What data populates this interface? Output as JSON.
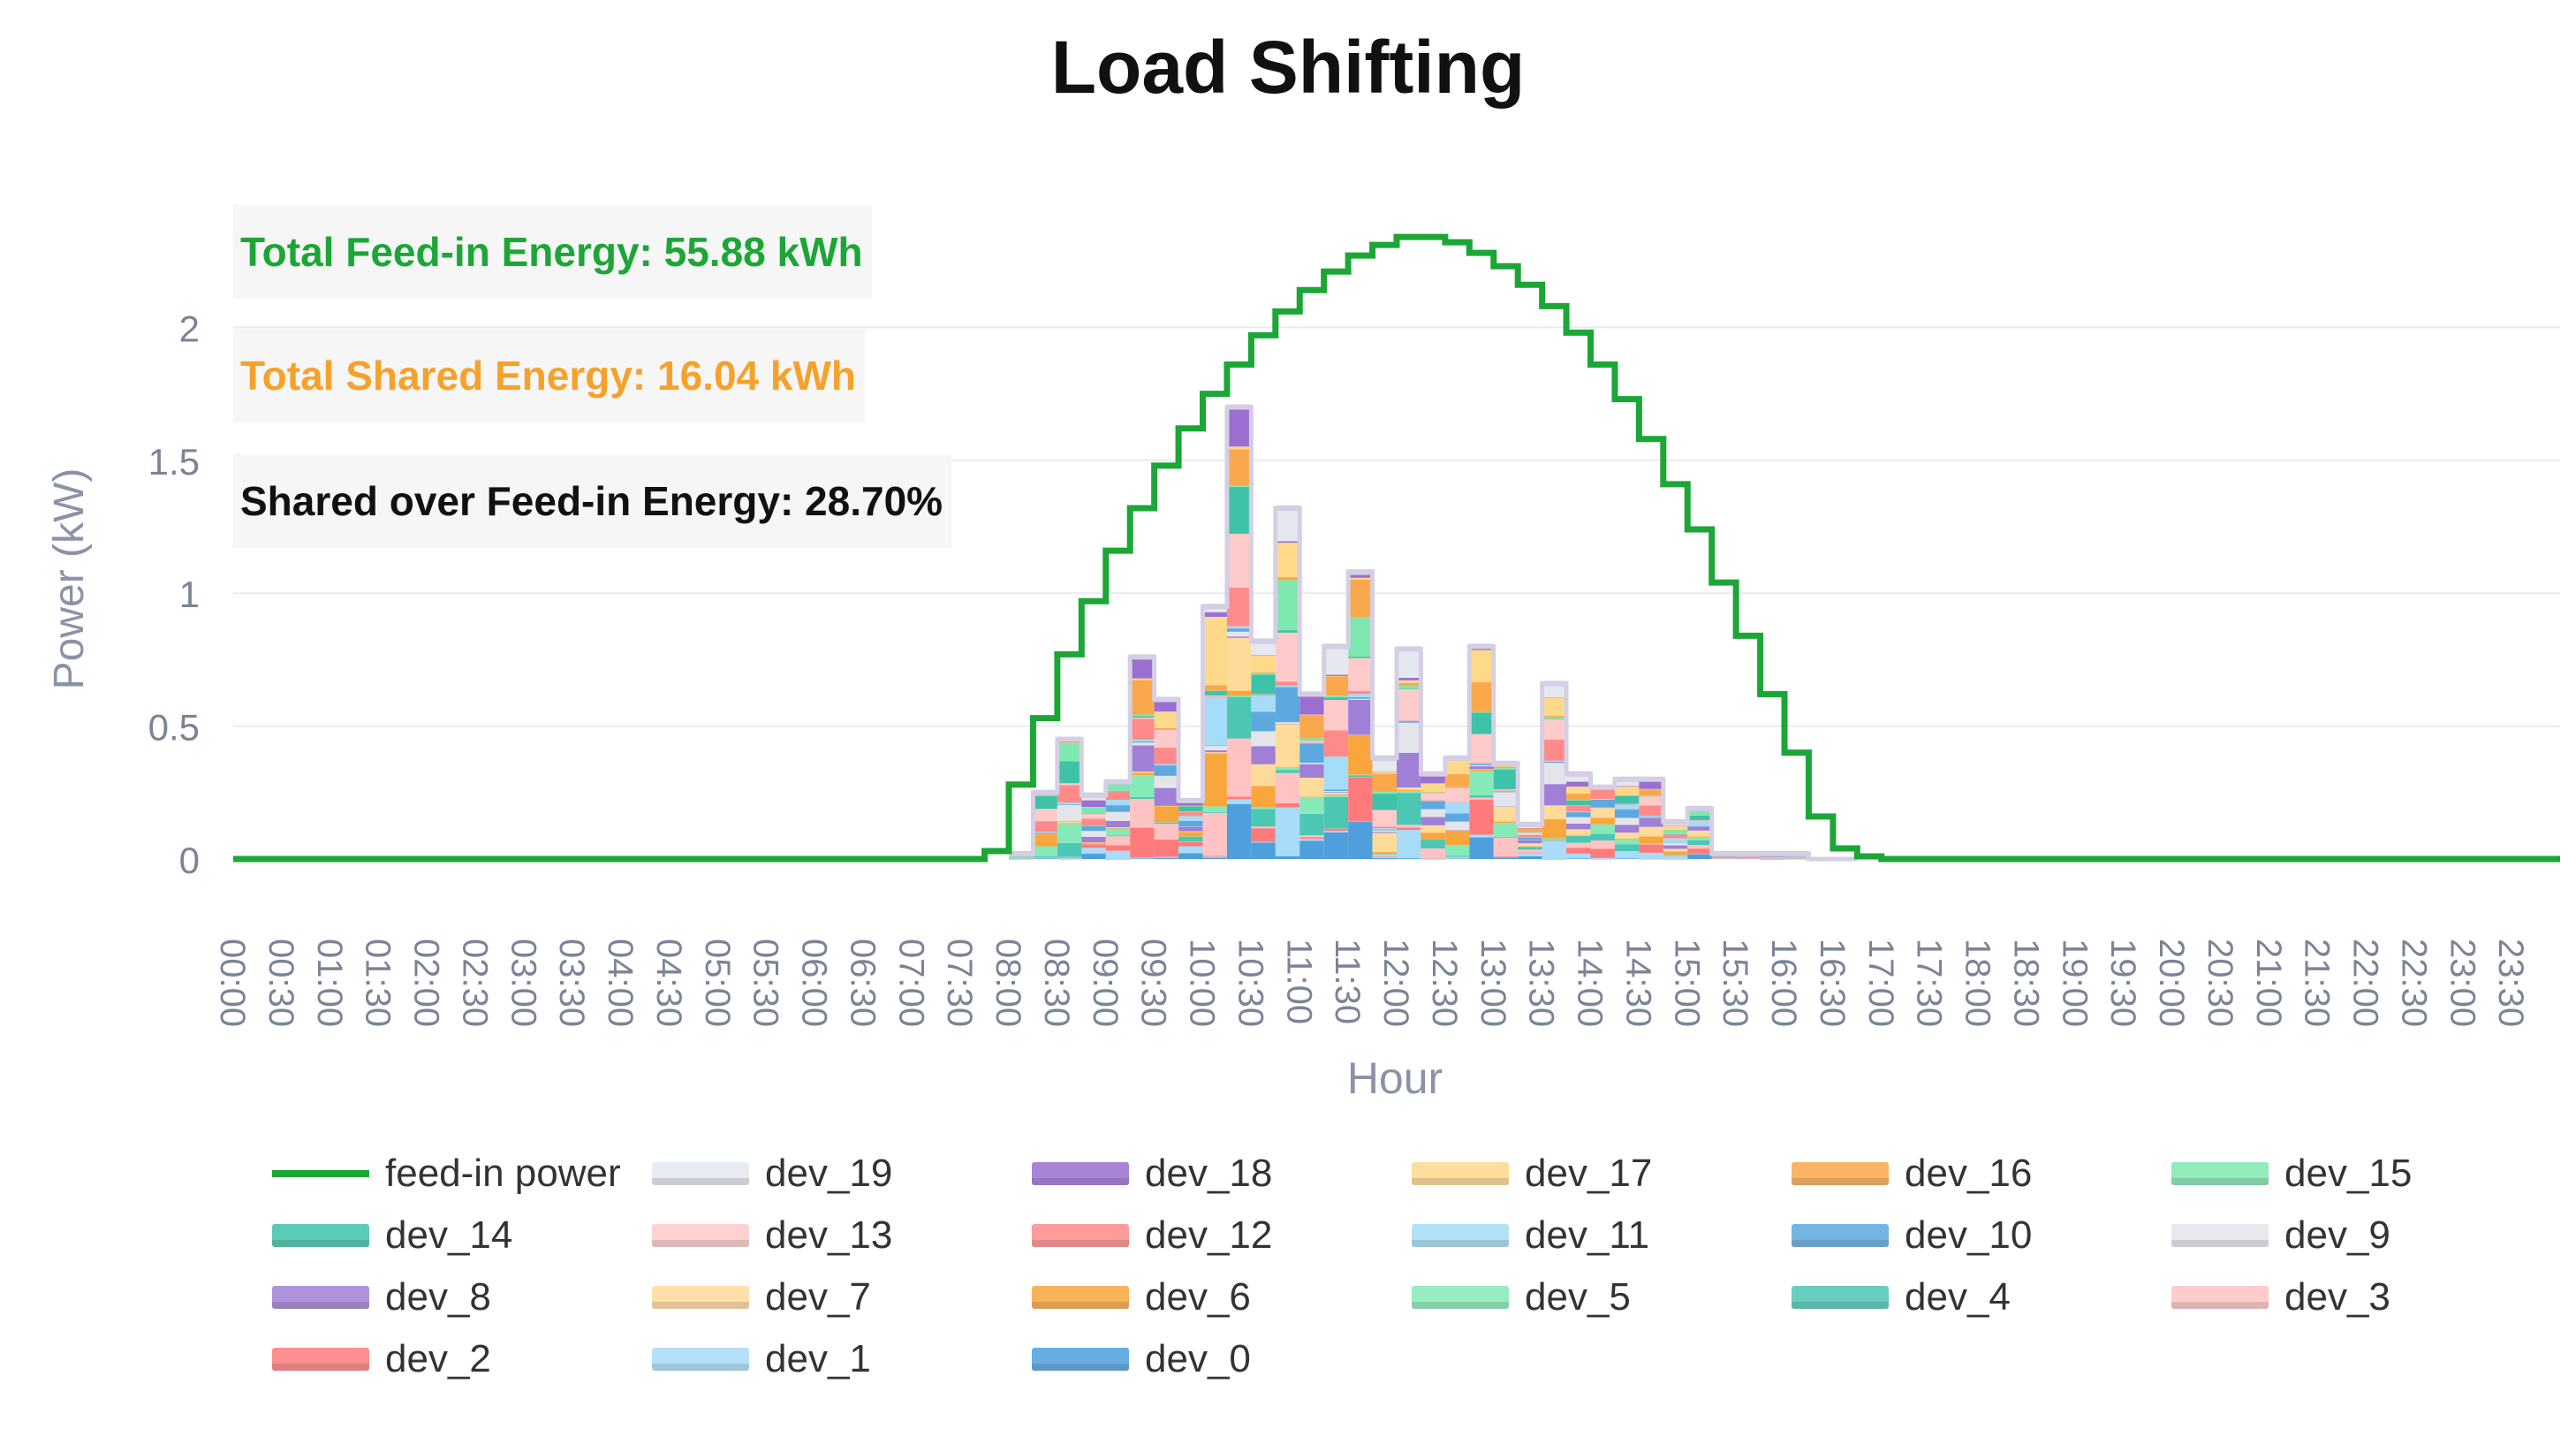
{
  "chart_data": {
    "type": "area",
    "title": "Load Shifting",
    "xlabel": "Hour",
    "ylabel": "Power (kW)",
    "ylim": [
      0,
      2.5
    ],
    "yticks": [
      "0",
      "0.5",
      "1",
      "1.5",
      "2"
    ],
    "grid": true,
    "step": true,
    "stacked": true,
    "legend_position": "bottom",
    "annotations": [
      {
        "text": "Total Feed-in Energy: 55.88 kWh",
        "color": "#1ca636"
      },
      {
        "text": "Total Shared Energy: 16.04  kWh",
        "color": "#f6a12b"
      },
      {
        "text": "Shared over Feed-in Energy: 28.70%",
        "color": "#111111"
      }
    ],
    "x": [
      "00:00",
      "00:30",
      "01:00",
      "01:30",
      "02:00",
      "02:30",
      "03:00",
      "03:30",
      "04:00",
      "04:30",
      "05:00",
      "05:30",
      "06:00",
      "06:30",
      "07:00",
      "07:30",
      "08:00",
      "08:30",
      "09:00",
      "09:30",
      "10:00",
      "10:30",
      "11:00",
      "11:30",
      "12:00",
      "12:30",
      "13:00",
      "13:30",
      "14:00",
      "14:30",
      "15:00",
      "15:30",
      "16:00",
      "16:30",
      "17:00",
      "17:30",
      "18:00",
      "18:30",
      "19:00",
      "19:30",
      "20:00",
      "20:30",
      "21:00",
      "21:30",
      "22:00",
      "22:30",
      "23:00",
      "23:30"
    ],
    "feed_in": {
      "name": "feed-in power",
      "color": "#1ca636",
      "x": [
        "07:30",
        "07:45",
        "08:00",
        "08:15",
        "08:30",
        "08:45",
        "09:00",
        "09:15",
        "09:30",
        "09:45",
        "10:00",
        "10:15",
        "10:30",
        "10:45",
        "11:00",
        "11:15",
        "11:30",
        "11:45",
        "12:00",
        "12:15",
        "12:30",
        "12:45",
        "13:00",
        "13:15",
        "13:30",
        "13:45",
        "14:00",
        "14:15",
        "14:30",
        "14:45",
        "15:00",
        "15:15",
        "15:30",
        "15:45",
        "16:00",
        "16:15",
        "16:30",
        "16:45",
        "17:00"
      ],
      "values": [
        0,
        0.03,
        0.28,
        0.53,
        0.77,
        0.97,
        1.16,
        1.32,
        1.48,
        1.62,
        1.75,
        1.86,
        1.97,
        2.06,
        2.14,
        2.21,
        2.27,
        2.31,
        2.34,
        2.34,
        2.32,
        2.28,
        2.23,
        2.16,
        2.08,
        1.98,
        1.86,
        1.73,
        1.58,
        1.41,
        1.24,
        1.04,
        0.84,
        0.62,
        0.4,
        0.16,
        0.04,
        0.01,
        0
      ]
    },
    "device_x": [
      "08:00",
      "08:15",
      "08:30",
      "08:45",
      "09:00",
      "09:15",
      "09:30",
      "09:45",
      "10:00",
      "10:15",
      "10:30",
      "10:45",
      "11:00",
      "11:15",
      "11:30",
      "11:45",
      "12:00",
      "12:15",
      "12:30",
      "12:45",
      "13:00",
      "13:15",
      "13:30",
      "13:45",
      "14:00",
      "14:15",
      "14:30",
      "14:45",
      "15:00",
      "15:15",
      "15:30",
      "15:45",
      "16:00",
      "16:15",
      "16:30"
    ],
    "device_totals": [
      0.02,
      0.25,
      0.45,
      0.24,
      0.29,
      0.76,
      0.6,
      0.22,
      0.95,
      1.7,
      0.82,
      1.32,
      0.62,
      0.8,
      1.08,
      0.38,
      0.79,
      0.32,
      0.38,
      0.8,
      0.36,
      0.13,
      0.66,
      0.32,
      0.27,
      0.3,
      0.3,
      0.14,
      0.19,
      0.02,
      0.02,
      0.02,
      0.02,
      0.0,
      0.0
    ],
    "series": [
      {
        "name": "dev_19",
        "color": "#e6e8f0"
      },
      {
        "name": "dev_18",
        "color": "#9a6fd1"
      },
      {
        "name": "dev_17",
        "color": "#ffd98a"
      },
      {
        "name": "dev_16",
        "color": "#f9a94b"
      },
      {
        "name": "dev_15",
        "color": "#7ee8b0"
      },
      {
        "name": "dev_14",
        "color": "#3ec2a8"
      },
      {
        "name": "dev_13",
        "color": "#ffcaca"
      },
      {
        "name": "dev_12",
        "color": "#ff8a8a"
      },
      {
        "name": "dev_11",
        "color": "#a5dcf7"
      },
      {
        "name": "dev_10",
        "color": "#5da8de"
      },
      {
        "name": "dev_9",
        "color": "#e4e5eb"
      },
      {
        "name": "dev_8",
        "color": "#a07fd6"
      },
      {
        "name": "dev_7",
        "color": "#ffdb99"
      },
      {
        "name": "dev_6",
        "color": "#f9a63d"
      },
      {
        "name": "dev_5",
        "color": "#86e9b8"
      },
      {
        "name": "dev_4",
        "color": "#4cc7b3"
      },
      {
        "name": "dev_3",
        "color": "#ffc3c3"
      },
      {
        "name": "dev_2",
        "color": "#ff7b7b"
      },
      {
        "name": "dev_1",
        "color": "#a8dcf8"
      },
      {
        "name": "dev_0",
        "color": "#4e9fdc"
      }
    ]
  }
}
